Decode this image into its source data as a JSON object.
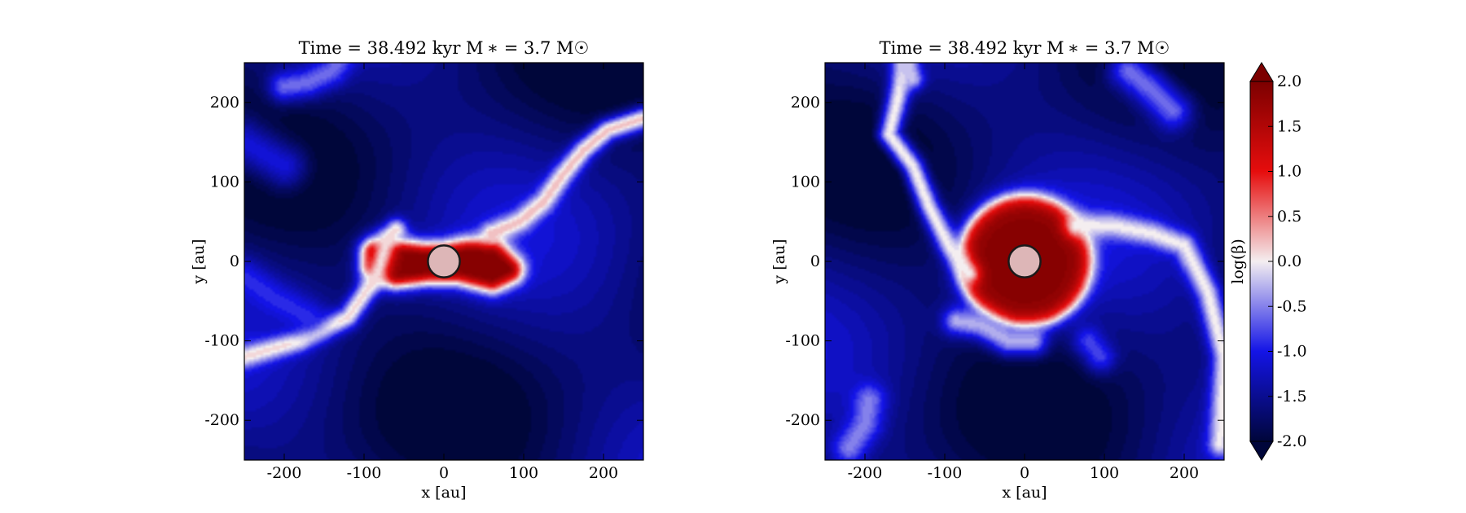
{
  "colors": {
    "extreme_low": "#00063a",
    "low": "#1414e6",
    "mid": "#f4eef0",
    "high": "#e60d0d",
    "extreme_high": "#7c0000",
    "star_fill": "#ddb6b7",
    "star_edge": "#1a1a1a"
  },
  "chart_data": [
    {
      "type": "heatmap",
      "title": "Time = 38.492 kyr    M ∗ = 3.7 M☉",
      "xlabel": "x [au]",
      "ylabel": "y [au]",
      "xlim": [
        -250,
        250
      ],
      "ylim": [
        -250,
        250
      ],
      "x_ticks": [
        -200,
        -100,
        0,
        100,
        200
      ],
      "y_ticks": [
        200,
        100,
        0,
        -100,
        -200
      ],
      "x_tick_labels": [
        "-200",
        "-100",
        "0",
        "100",
        "200"
      ],
      "y_tick_labels": [
        "200",
        "100",
        "0",
        "-100",
        "-200"
      ],
      "star": {
        "x": 0,
        "y": 0,
        "radius": 20
      },
      "features": [
        {
          "kind": "region",
          "level": 1.9,
          "sigma": 14,
          "points": [
            [
              -85,
              10
            ],
            [
              -60,
              10
            ],
            [
              -25,
              5
            ],
            [
              0,
              5
            ],
            [
              30,
              10
            ],
            [
              60,
              10
            ],
            [
              80,
              -10
            ],
            [
              60,
              -20
            ],
            [
              20,
              -10
            ],
            [
              0,
              -10
            ],
            [
              -20,
              -10
            ],
            [
              -60,
              -15
            ],
            [
              -85,
              -5
            ]
          ]
        },
        {
          "kind": "filament",
          "level": 0.1,
          "sigma": 10,
          "points": [
            [
              -250,
              -120
            ],
            [
              -180,
              -100
            ],
            [
              -120,
              -70
            ],
            [
              -85,
              -20
            ],
            [
              -70,
              30
            ],
            [
              -60,
              40
            ]
          ]
        },
        {
          "kind": "filament",
          "level": 0.2,
          "sigma": 10,
          "points": [
            [
              60,
              35
            ],
            [
              95,
              50
            ],
            [
              125,
              75
            ],
            [
              150,
              110
            ],
            [
              175,
              140
            ],
            [
              205,
              165
            ],
            [
              250,
              180
            ]
          ]
        },
        {
          "kind": "filament",
          "level": -0.9,
          "sigma": 16,
          "points": [
            [
              -250,
              -20
            ],
            [
              -215,
              -45
            ],
            [
              -170,
              -70
            ]
          ]
        },
        {
          "kind": "filament",
          "level": -0.6,
          "sigma": 14,
          "points": [
            [
              -200,
              220
            ],
            [
              -170,
              225
            ],
            [
              -140,
              240
            ],
            [
              -130,
              255
            ]
          ]
        },
        {
          "kind": "filament",
          "level": -1.1,
          "sigma": 22,
          "points": [
            [
              -250,
              150
            ],
            [
              -200,
              120
            ]
          ]
        }
      ]
    },
    {
      "type": "heatmap",
      "title": "Time = 38.492 kyr    M ∗ = 3.7 M☉",
      "xlabel": "x [au]",
      "ylabel": "y [au]",
      "xlim": [
        -250,
        250
      ],
      "ylim": [
        -250,
        250
      ],
      "x_ticks": [
        -200,
        -100,
        0,
        100,
        200
      ],
      "y_ticks": [
        200,
        100,
        0,
        -100,
        -200
      ],
      "x_tick_labels": [
        "-200",
        "-100",
        "0",
        "100",
        "200"
      ],
      "y_tick_labels": [
        "200",
        "100",
        "0",
        "-100",
        "-200"
      ],
      "star": {
        "x": 0,
        "y": 0,
        "radius": 20
      },
      "features": [
        {
          "kind": "disk",
          "level": 1.9,
          "cx": 0,
          "cy": 0,
          "radius": 82,
          "edge": 7
        },
        {
          "kind": "filament",
          "level": 0.0,
          "sigma": 10,
          "points": [
            [
              -150,
              250
            ],
            [
              -160,
              200
            ],
            [
              -170,
              160
            ],
            [
              -140,
              120
            ],
            [
              -120,
              70
            ],
            [
              -95,
              20
            ],
            [
              -70,
              -15
            ]
          ]
        },
        {
          "kind": "filament",
          "level": 0.0,
          "sigma": 11,
          "points": [
            [
              65,
              45
            ],
            [
              110,
              45
            ],
            [
              160,
              35
            ],
            [
              200,
              20
            ],
            [
              230,
              -40
            ],
            [
              250,
              -120
            ],
            [
              245,
              -230
            ]
          ]
        },
        {
          "kind": "filament",
          "level": -0.3,
          "sigma": 13,
          "points": [
            [
              -85,
              -75
            ],
            [
              -55,
              -80
            ],
            [
              -20,
              -100
            ],
            [
              10,
              -100
            ]
          ]
        },
        {
          "kind": "filament",
          "level": -0.6,
          "sigma": 18,
          "points": [
            [
              130,
              240
            ],
            [
              160,
              215
            ],
            [
              185,
              190
            ]
          ]
        },
        {
          "kind": "filament",
          "level": -0.5,
          "sigma": 15,
          "points": [
            [
              -220,
              -235
            ],
            [
              -200,
              -205
            ],
            [
              -195,
              -175
            ]
          ]
        },
        {
          "kind": "filament",
          "level": -0.8,
          "sigma": 14,
          "points": [
            [
              80,
              -100
            ],
            [
              95,
              -120
            ]
          ]
        },
        {
          "kind": "filament",
          "level": -0.2,
          "sigma": 10,
          "points": [
            [
              -150,
              250
            ],
            [
              -140,
              230
            ]
          ]
        }
      ]
    }
  ],
  "colorbar": {
    "label": "log(β)",
    "range": [
      -2.0,
      2.0
    ],
    "ticks": [
      2.0,
      1.5,
      1.0,
      0.5,
      0.0,
      -0.5,
      -1.0,
      -1.5,
      -2.0
    ],
    "tick_labels": [
      "2.0",
      "1.5",
      "1.0",
      "0.5",
      "0.0",
      "-0.5",
      "-1.0",
      "-1.5",
      "-2.0"
    ],
    "extend": "both"
  }
}
